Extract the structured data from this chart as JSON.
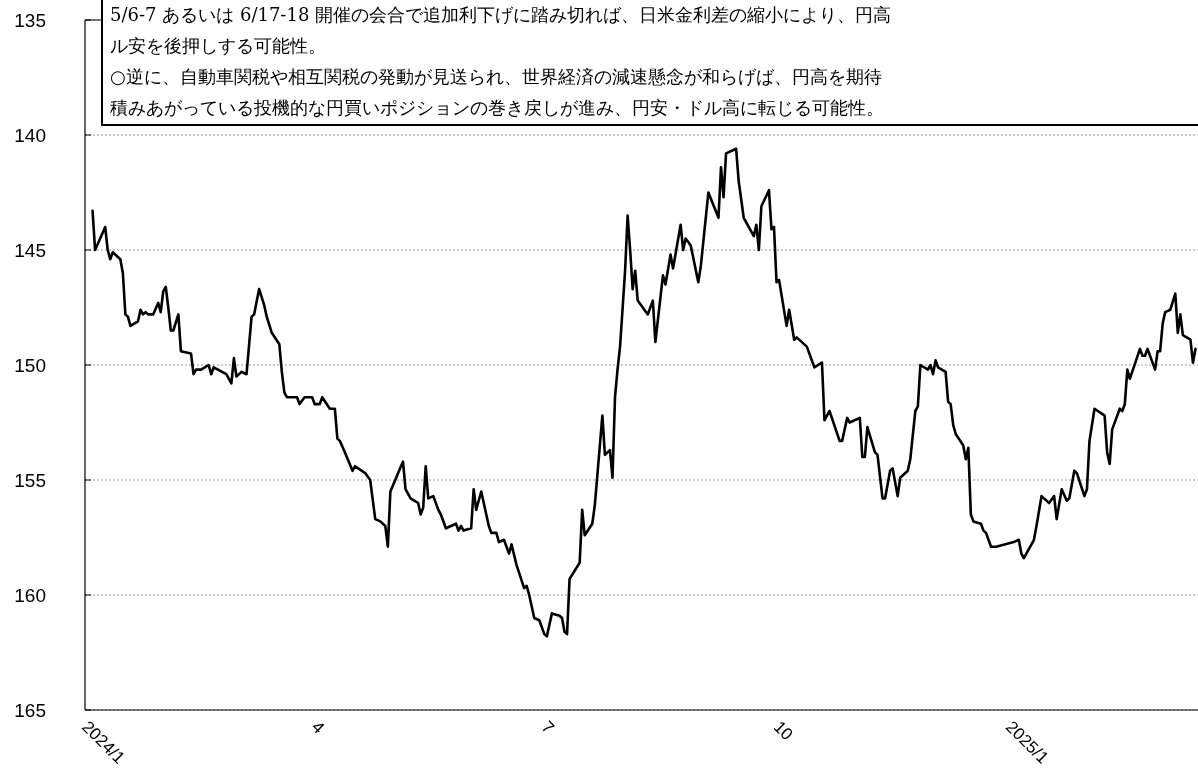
{
  "chart_data": {
    "type": "line",
    "color": "#000000",
    "line_style": "solid",
    "marker": "none",
    "grid": "y",
    "annotations": [
      "5/6-7 あるいは 6/17-18 開催の会合で追加利下げに踏み切れば、日米金利差の縮小により、円高",
      "ル安を後押しする可能性。",
      "○逆に、自動車関税や相互関税の発動が見送られ、世界経済の減速懸念が和らげば、円高を期待",
      "積みあがっている投機的な円買いポジションの巻き戻しが進み、円安・ドル高に転じる可能性。"
    ],
    "xlim": [
      "2024-01-01",
      "2025-03-17"
    ],
    "xticks": [
      {
        "value": "2024-01-01",
        "label": "2024/1"
      },
      {
        "value": "2024-04-01",
        "label": "4"
      },
      {
        "value": "2024-07-01",
        "label": "7"
      },
      {
        "value": "2024-10-01",
        "label": "10"
      },
      {
        "value": "2025-01-01",
        "label": "2025/1"
      }
    ],
    "ylim": [
      165,
      135
    ],
    "yticks": [
      135,
      140,
      145,
      150,
      155,
      160,
      165
    ],
    "x": [
      "2024-01-04",
      "2024-01-05",
      "2024-01-09",
      "2024-01-10",
      "2024-01-11",
      "2024-01-12",
      "2024-01-15",
      "2024-01-16",
      "2024-01-17",
      "2024-01-18",
      "2024-01-19",
      "2024-01-22",
      "2024-01-23",
      "2024-01-24",
      "2024-01-25",
      "2024-01-26",
      "2024-01-28",
      "2024-01-30",
      "2024-01-31",
      "2024-02-01",
      "2024-02-02",
      "2024-02-03",
      "2024-02-04",
      "2024-02-05",
      "2024-02-07",
      "2024-02-08",
      "2024-02-12",
      "2024-02-13",
      "2024-02-14",
      "2024-02-16",
      "2024-02-19",
      "2024-02-20",
      "2024-02-21",
      "2024-02-26",
      "2024-02-28",
      "2024-02-29",
      "2024-03-01",
      "2024-03-03",
      "2024-03-05",
      "2024-03-07",
      "2024-03-08",
      "2024-03-10",
      "2024-03-12",
      "2024-03-13",
      "2024-03-15",
      "2024-03-18",
      "2024-03-19",
      "2024-03-20",
      "2024-03-21",
      "2024-03-25",
      "2024-03-26",
      "2024-03-28",
      "2024-03-31",
      "2024-04-01",
      "2024-04-03",
      "2024-04-04",
      "2024-04-07",
      "2024-04-09",
      "2024-04-10",
      "2024-04-11",
      "2024-04-13",
      "2024-04-16",
      "2024-04-17",
      "2024-04-21",
      "2024-04-23",
      "2024-04-25",
      "2024-04-27",
      "2024-04-29",
      "2024-04-30",
      "2024-05-01",
      "2024-05-06",
      "2024-05-07",
      "2024-05-09",
      "2024-05-12",
      "2024-05-13",
      "2024-05-14",
      "2024-05-15",
      "2024-05-16",
      "2024-05-18",
      "2024-05-20",
      "2024-05-21",
      "2024-05-23",
      "2024-05-27",
      "2024-05-28",
      "2024-05-29",
      "2024-05-30",
      "2024-06-02",
      "2024-06-03",
      "2024-06-04",
      "2024-06-06",
      "2024-06-09",
      "2024-06-10",
      "2024-06-12",
      "2024-06-13",
      "2024-06-15",
      "2024-06-17",
      "2024-06-18",
      "2024-06-20",
      "2024-06-23",
      "2024-06-24",
      "2024-06-25",
      "2024-06-27",
      "2024-06-29",
      "2024-07-01",
      "2024-07-02",
      "2024-07-04",
      "2024-07-07",
      "2024-07-08",
      "2024-07-09",
      "2024-07-10",
      "2024-07-11",
      "2024-07-15",
      "2024-07-16",
      "2024-07-17",
      "2024-07-20",
      "2024-07-21",
      "2024-07-22",
      "2024-07-24",
      "2024-07-25",
      "2024-07-27",
      "2024-07-28",
      "2024-07-29",
      "2024-07-30",
      "2024-07-31",
      "2024-08-02",
      "2024-08-03",
      "2024-08-04",
      "2024-08-05",
      "2024-08-06",
      "2024-08-07",
      "2024-08-11",
      "2024-08-13",
      "2024-08-14",
      "2024-08-17",
      "2024-08-18",
      "2024-08-20",
      "2024-08-21",
      "2024-08-24",
      "2024-08-25",
      "2024-08-26",
      "2024-08-28",
      "2024-08-31",
      "2024-09-01",
      "2024-09-04",
      "2024-09-08",
      "2024-09-09",
      "2024-09-10",
      "2024-09-11",
      "2024-09-15",
      "2024-09-16",
      "2024-09-18",
      "2024-09-22",
      "2024-09-23",
      "2024-09-24",
      "2024-09-25",
      "2024-09-28",
      "2024-09-29",
      "2024-09-30",
      "2024-10-01",
      "2024-10-02",
      "2024-10-05",
      "2024-10-06",
      "2024-10-08",
      "2024-10-09",
      "2024-10-13",
      "2024-10-16",
      "2024-10-19",
      "2024-10-20",
      "2024-10-22",
      "2024-10-26",
      "2024-10-27",
      "2024-10-29",
      "2024-10-30",
      "2024-11-03",
      "2024-11-04",
      "2024-11-05",
      "2024-11-06",
      "2024-11-09",
      "2024-11-10",
      "2024-11-12",
      "2024-11-13",
      "2024-11-15",
      "2024-11-16",
      "2024-11-18",
      "2024-11-19",
      "2024-11-22",
      "2024-11-23",
      "2024-11-25",
      "2024-11-26",
      "2024-11-27",
      "2024-11-30",
      "2024-12-01",
      "2024-12-02",
      "2024-12-03",
      "2024-12-04",
      "2024-12-07",
      "2024-12-08",
      "2024-12-09",
      "2024-12-10",
      "2024-12-11",
      "2024-12-14",
      "2024-12-15",
      "2024-12-16",
      "2024-12-17",
      "2024-12-18",
      "2024-12-21",
      "2024-12-22",
      "2024-12-23",
      "2024-12-25",
      "2024-12-27",
      "2025-01-03",
      "2025-01-05",
      "2025-01-06",
      "2025-01-07",
      "2025-01-11",
      "2025-01-12",
      "2025-01-14",
      "2025-01-17",
      "2025-01-19",
      "2025-01-20",
      "2025-01-22",
      "2025-01-24",
      "2025-01-25",
      "2025-01-27",
      "2025-01-28",
      "2025-01-31",
      "2025-02-01",
      "2025-02-02",
      "2025-02-04",
      "2025-02-08",
      "2025-02-09",
      "2025-02-10",
      "2025-02-11",
      "2025-02-14",
      "2025-02-15",
      "2025-02-16",
      "2025-02-17",
      "2025-02-18",
      "2025-02-22",
      "2025-02-23",
      "2025-02-24",
      "2025-02-25",
      "2025-02-28",
      "2025-03-01",
      "2025-03-02",
      "2025-03-03",
      "2025-03-04",
      "2025-03-06",
      "2025-03-08",
      "2025-03-09",
      "2025-03-10",
      "2025-03-11",
      "2025-03-14",
      "2025-03-15",
      "2025-03-16"
    ],
    "values": [
      143.3,
      145.0,
      144.0,
      145.0,
      145.4,
      145.1,
      145.4,
      146.0,
      147.8,
      147.9,
      148.3,
      148.1,
      147.6,
      147.8,
      147.7,
      147.8,
      147.8,
      147.3,
      147.7,
      146.8,
      146.6,
      147.5,
      148.5,
      148.5,
      147.8,
      149.4,
      149.5,
      150.4,
      150.2,
      150.2,
      150.0,
      150.4,
      150.1,
      150.4,
      150.8,
      149.7,
      150.5,
      150.3,
      150.4,
      147.9,
      147.8,
      146.7,
      147.4,
      147.9,
      148.6,
      149.1,
      150.3,
      151.2,
      151.4,
      151.4,
      151.7,
      151.4,
      151.4,
      151.7,
      151.7,
      151.4,
      151.9,
      151.9,
      153.2,
      153.3,
      153.8,
      154.6,
      154.4,
      154.7,
      155.0,
      156.7,
      156.8,
      157.0,
      157.9,
      155.5,
      154.2,
      155.4,
      155.8,
      156.0,
      156.5,
      156.2,
      154.4,
      155.8,
      155.7,
      156.3,
      156.5,
      157.1,
      156.9,
      157.2,
      157.0,
      157.2,
      157.1,
      155.4,
      156.3,
      155.5,
      157.0,
      157.3,
      157.3,
      157.7,
      157.6,
      158.2,
      157.8,
      158.7,
      159.7,
      159.6,
      160.0,
      161.0,
      161.1,
      161.7,
      161.8,
      160.8,
      160.9,
      161.0,
      161.6,
      161.7,
      159.3,
      158.6,
      156.3,
      157.4,
      156.9,
      156.1,
      154.8,
      152.2,
      153.9,
      153.7,
      154.9,
      151.4,
      150.2,
      149.2,
      145.9,
      143.5,
      145.0,
      146.7,
      145.9,
      147.2,
      147.8,
      147.2,
      149.0,
      146.1,
      146.5,
      145.2,
      145.8,
      143.9,
      145.0,
      144.5,
      144.8,
      146.4,
      145.7,
      142.5,
      143.6,
      141.4,
      142.7,
      140.8,
      140.6,
      142.0,
      143.6,
      144.4,
      143.9,
      145.0,
      143.1,
      142.4,
      144.1,
      144.0,
      146.4,
      146.3,
      148.3,
      147.6,
      148.9,
      148.8,
      149.2,
      150.1,
      149.9,
      152.4,
      152.0,
      153.3,
      153.3,
      152.3,
      152.5,
      152.3,
      154.0,
      154.0,
      152.7,
      153.8,
      153.9,
      155.8,
      155.8,
      154.6,
      154.5,
      155.7,
      154.9,
      154.6,
      154.1,
      152.0,
      151.8,
      150.0,
      150.2,
      150.0,
      150.4,
      149.8,
      150.1,
      150.3,
      151.6,
      151.7,
      152.6,
      153.0,
      153.5,
      154.1,
      153.6,
      156.5,
      156.8,
      156.9,
      157.2,
      157.3,
      157.9,
      157.9,
      157.7,
      157.6,
      158.2,
      158.4,
      157.6,
      157.0,
      155.7,
      156.0,
      155.7,
      156.7,
      155.4,
      155.9,
      155.8,
      154.6,
      154.7,
      155.7,
      155.4,
      153.3,
      151.9,
      152.2,
      153.8,
      154.3,
      152.8,
      151.9,
      152.0,
      151.7,
      150.2,
      150.6,
      149.3,
      149.6,
      149.6,
      149.3,
      150.2,
      149.4,
      149.4,
      148.2,
      147.7,
      147.6,
      146.9,
      148.6,
      147.8,
      148.7,
      148.9,
      149.9,
      149.3
    ]
  }
}
